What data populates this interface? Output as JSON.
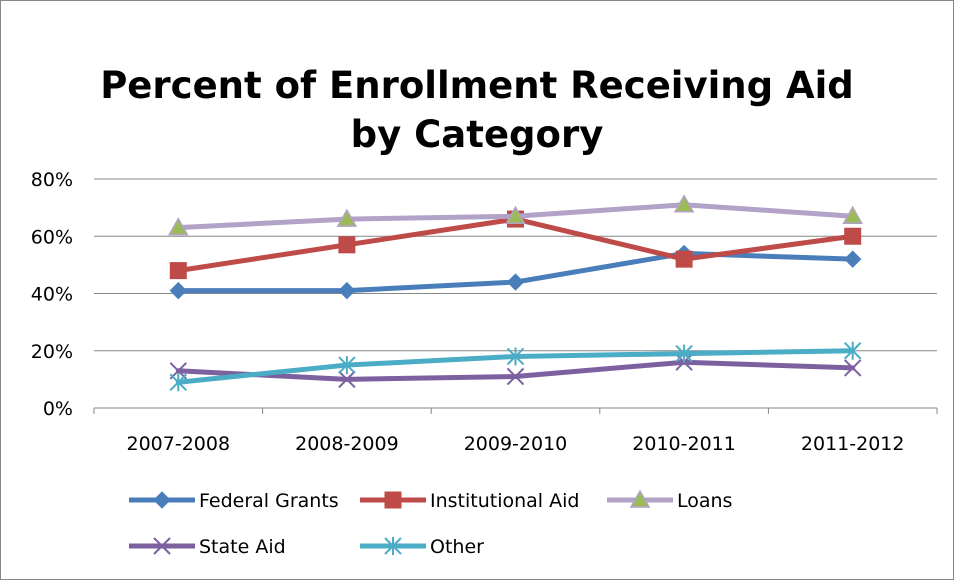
{
  "chart_data": {
    "type": "line",
    "title": "Percent of Enrollment Receiving Aid",
    "title_line2": "by Category",
    "categories": [
      "2007-2008",
      "2008-2009",
      "2009-2010",
      "2010-2011",
      "2011-2012"
    ],
    "ylim": [
      0,
      80
    ],
    "y_ticks": [
      0,
      20,
      40,
      60,
      80
    ],
    "y_tick_labels": [
      "0%",
      "20%",
      "40%",
      "60%",
      "80%"
    ],
    "grid": true,
    "legend_position": "bottom",
    "series": [
      {
        "name": "Federal Grants",
        "values": [
          41,
          41,
          44,
          54,
          52
        ],
        "color": "#4A7EBB",
        "marker": "diamond"
      },
      {
        "name": "Institutional Aid",
        "values": [
          48,
          57,
          66,
          52,
          60
        ],
        "color": "#BE4B48",
        "marker": "square"
      },
      {
        "name": "Loans",
        "values": [
          63,
          66,
          67,
          71,
          67
        ],
        "color": "#B3A2C7",
        "marker": "triangle",
        "marker_fill": "#9BBB59"
      },
      {
        "name": "State Aid",
        "values": [
          13,
          10,
          11,
          16,
          14
        ],
        "color": "#7D60A0",
        "marker": "x"
      },
      {
        "name": "Other",
        "values": [
          9,
          15,
          18,
          19,
          20
        ],
        "color": "#4BACC6",
        "marker": "asterisk"
      }
    ]
  }
}
